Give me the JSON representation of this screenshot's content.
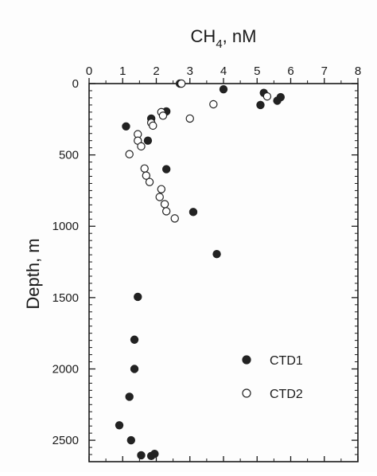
{
  "chart_data": {
    "type": "scatter",
    "x_axis": {
      "label": "CH",
      "label_subscript": "4",
      "label_suffix": ", nM",
      "range": [
        0,
        8
      ],
      "ticks": [
        "0",
        "1",
        "2",
        "3",
        "4",
        "5",
        "6",
        "7",
        "8"
      ],
      "position": "top"
    },
    "y_axis": {
      "label": "Depth, m",
      "range": [
        0,
        2650
      ],
      "inverted": true,
      "ticks": [
        "0",
        "500",
        "1000",
        "1500",
        "2000",
        "2500"
      ]
    },
    "grid": false,
    "legend_placement": "bottom-right",
    "series": [
      {
        "name": "CTD1",
        "marker": "filled-circle",
        "color": "#222222",
        "points": [
          [
            2.7,
            0
          ],
          [
            4.0,
            40
          ],
          [
            5.2,
            65
          ],
          [
            5.7,
            95
          ],
          [
            5.6,
            120
          ],
          [
            5.1,
            150
          ],
          [
            2.3,
            195
          ],
          [
            1.85,
            245
          ],
          [
            1.1,
            300
          ],
          [
            1.75,
            400
          ],
          [
            2.3,
            600
          ],
          [
            3.1,
            900
          ],
          [
            3.8,
            1195
          ],
          [
            1.45,
            1495
          ],
          [
            1.35,
            1795
          ],
          [
            1.35,
            2000
          ],
          [
            1.2,
            2195
          ],
          [
            0.9,
            2395
          ],
          [
            1.25,
            2500
          ],
          [
            1.55,
            2605
          ],
          [
            1.85,
            2610
          ],
          [
            1.95,
            2595
          ]
        ]
      },
      {
        "name": "CTD2",
        "marker": "open-circle",
        "color": "#222222",
        "points": [
          [
            2.75,
            0
          ],
          [
            5.3,
            90
          ],
          [
            3.7,
            145
          ],
          [
            2.15,
            200
          ],
          [
            2.2,
            225
          ],
          [
            3.0,
            245
          ],
          [
            1.85,
            275
          ],
          [
            1.9,
            295
          ],
          [
            1.45,
            355
          ],
          [
            1.45,
            400
          ],
          [
            1.55,
            440
          ],
          [
            1.2,
            495
          ],
          [
            1.65,
            595
          ],
          [
            1.7,
            645
          ],
          [
            1.8,
            690
          ],
          [
            2.15,
            740
          ],
          [
            2.1,
            795
          ],
          [
            2.25,
            845
          ],
          [
            2.3,
            895
          ],
          [
            2.55,
            945
          ]
        ]
      }
    ]
  }
}
